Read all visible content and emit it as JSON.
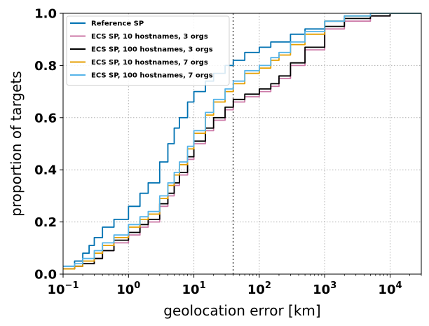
{
  "chart_data": {
    "type": "line",
    "xlabel": "geolocation error [km]",
    "ylabel": "proportion of targets",
    "x_scale": "log",
    "xlim": [
      0.1,
      30000
    ],
    "ylim": [
      0,
      1
    ],
    "grid": true,
    "legend_placement": "top-left",
    "x_ticks": [
      {
        "value": 0.1,
        "base": "10",
        "exp": "−1"
      },
      {
        "value": 1,
        "base": "10",
        "exp": "0"
      },
      {
        "value": 10,
        "base": "10",
        "exp": "1"
      },
      {
        "value": 100,
        "base": "10",
        "exp": "2"
      },
      {
        "value": 1000,
        "base": "10",
        "exp": "3"
      },
      {
        "value": 10000,
        "base": "10",
        "exp": "4"
      }
    ],
    "y_ticks": [
      {
        "value": 0.0,
        "label": "0.0"
      },
      {
        "value": 0.2,
        "label": "0.2"
      },
      {
        "value": 0.4,
        "label": "0.4"
      },
      {
        "value": 0.6,
        "label": "0.6"
      },
      {
        "value": 0.8,
        "label": "0.8"
      },
      {
        "value": 1.0,
        "label": "1.0"
      }
    ],
    "vline": {
      "x": 40,
      "color": "#808080",
      "style": "dotted"
    },
    "series": [
      {
        "name": "Reference SP",
        "color": "#0072b2",
        "points": [
          [
            0.1,
            0.03
          ],
          [
            0.15,
            0.05
          ],
          [
            0.2,
            0.08
          ],
          [
            0.25,
            0.11
          ],
          [
            0.3,
            0.14
          ],
          [
            0.4,
            0.18
          ],
          [
            0.6,
            0.21
          ],
          [
            1.0,
            0.26
          ],
          [
            1.5,
            0.31
          ],
          [
            2.0,
            0.35
          ],
          [
            3.0,
            0.43
          ],
          [
            4.0,
            0.5
          ],
          [
            5.0,
            0.56
          ],
          [
            6.0,
            0.6
          ],
          [
            8.0,
            0.66
          ],
          [
            10,
            0.7
          ],
          [
            15,
            0.74
          ],
          [
            20,
            0.77
          ],
          [
            30,
            0.8
          ],
          [
            40,
            0.82
          ],
          [
            60,
            0.85
          ],
          [
            100,
            0.87
          ],
          [
            150,
            0.89
          ],
          [
            300,
            0.92
          ],
          [
            500,
            0.94
          ],
          [
            1000,
            0.97
          ],
          [
            2000,
            0.99
          ],
          [
            5000,
            1.0
          ]
        ]
      },
      {
        "name": "ECS SP, 10 hostnames, 3 orgs",
        "color": "#cc79a7",
        "points": [
          [
            0.1,
            0.02
          ],
          [
            0.15,
            0.03
          ],
          [
            0.2,
            0.04
          ],
          [
            0.3,
            0.06
          ],
          [
            0.4,
            0.09
          ],
          [
            0.6,
            0.12
          ],
          [
            1.0,
            0.15
          ],
          [
            1.5,
            0.18
          ],
          [
            2.0,
            0.2
          ],
          [
            3.0,
            0.26
          ],
          [
            4.0,
            0.3
          ],
          [
            5.0,
            0.34
          ],
          [
            6.0,
            0.38
          ],
          [
            8.0,
            0.44
          ],
          [
            10,
            0.5
          ],
          [
            15,
            0.55
          ],
          [
            20,
            0.59
          ],
          [
            30,
            0.63
          ],
          [
            40,
            0.66
          ],
          [
            60,
            0.68
          ],
          [
            100,
            0.7
          ],
          [
            150,
            0.72
          ],
          [
            200,
            0.75
          ],
          [
            300,
            0.8
          ],
          [
            500,
            0.86
          ],
          [
            1000,
            0.94
          ],
          [
            2000,
            0.97
          ],
          [
            5000,
            0.99
          ],
          [
            10000,
            1.0
          ]
        ]
      },
      {
        "name": "ECS SP, 100 hostnames, 3 orgs",
        "color": "#000000",
        "points": [
          [
            0.1,
            0.02
          ],
          [
            0.15,
            0.03
          ],
          [
            0.2,
            0.04
          ],
          [
            0.3,
            0.06
          ],
          [
            0.4,
            0.09
          ],
          [
            0.6,
            0.13
          ],
          [
            1.0,
            0.16
          ],
          [
            1.5,
            0.19
          ],
          [
            2.0,
            0.21
          ],
          [
            3.0,
            0.27
          ],
          [
            4.0,
            0.31
          ],
          [
            5.0,
            0.35
          ],
          [
            6.0,
            0.39
          ],
          [
            8.0,
            0.45
          ],
          [
            10,
            0.51
          ],
          [
            15,
            0.56
          ],
          [
            20,
            0.6
          ],
          [
            30,
            0.64
          ],
          [
            40,
            0.67
          ],
          [
            60,
            0.69
          ],
          [
            100,
            0.71
          ],
          [
            150,
            0.73
          ],
          [
            200,
            0.76
          ],
          [
            300,
            0.81
          ],
          [
            500,
            0.87
          ],
          [
            1000,
            0.95
          ],
          [
            2000,
            0.98
          ],
          [
            5000,
            0.99
          ],
          [
            10000,
            1.0
          ]
        ]
      },
      {
        "name": "ECS SP, 10 hostnames, 7 orgs",
        "color": "#e69f00",
        "points": [
          [
            0.1,
            0.02
          ],
          [
            0.15,
            0.03
          ],
          [
            0.2,
            0.05
          ],
          [
            0.3,
            0.08
          ],
          [
            0.4,
            0.11
          ],
          [
            0.6,
            0.14
          ],
          [
            1.0,
            0.18
          ],
          [
            1.5,
            0.21
          ],
          [
            2.0,
            0.23
          ],
          [
            3.0,
            0.29
          ],
          [
            4.0,
            0.34
          ],
          [
            5.0,
            0.38
          ],
          [
            6.0,
            0.42
          ],
          [
            8.0,
            0.48
          ],
          [
            10,
            0.54
          ],
          [
            15,
            0.61
          ],
          [
            20,
            0.66
          ],
          [
            30,
            0.7
          ],
          [
            40,
            0.73
          ],
          [
            60,
            0.77
          ],
          [
            100,
            0.79
          ],
          [
            150,
            0.82
          ],
          [
            200,
            0.84
          ],
          [
            300,
            0.88
          ],
          [
            500,
            0.92
          ],
          [
            1000,
            0.97
          ],
          [
            2000,
            0.99
          ],
          [
            5000,
            1.0
          ]
        ]
      },
      {
        "name": "ECS SP, 100 hostnames, 7 orgs",
        "color": "#56b4e9",
        "points": [
          [
            0.1,
            0.03
          ],
          [
            0.15,
            0.04
          ],
          [
            0.2,
            0.06
          ],
          [
            0.3,
            0.09
          ],
          [
            0.4,
            0.12
          ],
          [
            0.6,
            0.15
          ],
          [
            1.0,
            0.19
          ],
          [
            1.5,
            0.22
          ],
          [
            2.0,
            0.24
          ],
          [
            3.0,
            0.3
          ],
          [
            4.0,
            0.35
          ],
          [
            5.0,
            0.39
          ],
          [
            6.0,
            0.43
          ],
          [
            8.0,
            0.49
          ],
          [
            10,
            0.55
          ],
          [
            15,
            0.62
          ],
          [
            20,
            0.67
          ],
          [
            30,
            0.71
          ],
          [
            40,
            0.74
          ],
          [
            60,
            0.78
          ],
          [
            100,
            0.8
          ],
          [
            150,
            0.83
          ],
          [
            200,
            0.85
          ],
          [
            300,
            0.89
          ],
          [
            500,
            0.93
          ],
          [
            1000,
            0.97
          ],
          [
            2000,
            0.99
          ],
          [
            5000,
            1.0
          ]
        ]
      }
    ]
  }
}
